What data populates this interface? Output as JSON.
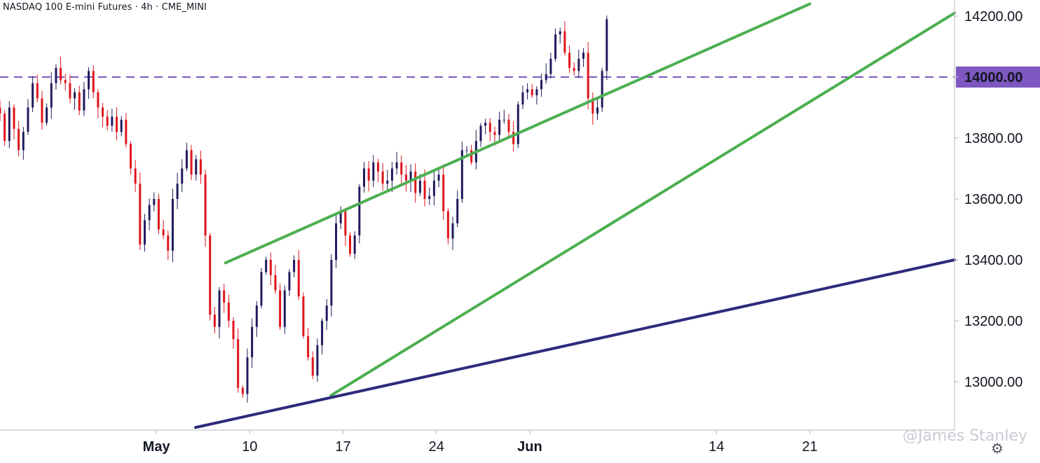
{
  "header": {
    "title": "NASDAQ 100 E-mini Futures · 4h · CME_MINI"
  },
  "watermark": "@James Stanley",
  "settings_icon": "gear-icon",
  "chart_data": {
    "type": "candlestick",
    "title": "NASDAQ 100 E-mini Futures · 4h · CME_MINI",
    "ylim": [
      12850,
      14240
    ],
    "y_ticks": [
      13000,
      13200,
      13400,
      13600,
      13800,
      14000,
      14200
    ],
    "y_tick_labels": [
      "13000.00",
      "13200.00",
      "13400.00",
      "13600.00",
      "13800.00",
      "14000.00",
      "14200.00"
    ],
    "x_ticks": [
      {
        "label": "May",
        "bar": 40
      },
      {
        "label": "10",
        "bar": 60
      },
      {
        "label": "17",
        "bar": 80
      },
      {
        "label": "24",
        "bar": 100
      },
      {
        "label": "Jun",
        "bar": 120
      },
      {
        "label": "14",
        "bar": 160
      },
      {
        "label": "21",
        "bar": 180
      }
    ],
    "x_bars_visible": [
      6.5,
      211
    ],
    "horizontal_level": {
      "value": 14000,
      "label": "14000.00",
      "color": "#7e57c2",
      "style": "dashed"
    },
    "trendlines": [
      {
        "name": "channel-top",
        "color": "#4caf50",
        "points": [
          [
            54.8,
            13390
          ],
          [
            180,
            14240
          ]
        ]
      },
      {
        "name": "channel-bottom",
        "color": "#4caf50",
        "points": [
          [
            77.4,
            12955
          ],
          [
            211,
            14210
          ]
        ]
      },
      {
        "name": "long-support",
        "color": "#2e2a7c",
        "points": [
          [
            48.4,
            12850
          ],
          [
            211,
            13400
          ]
        ]
      }
    ],
    "colors": {
      "up": "#1e1b5e",
      "down": "#e0151b"
    },
    "anchors": [
      [
        6.5,
        13880
      ],
      [
        7.5,
        13790
      ],
      [
        8.5,
        13900
      ],
      [
        9.5,
        13830
      ],
      [
        10.5,
        13760
      ],
      [
        11.5,
        13820
      ],
      [
        12.5,
        13900
      ],
      [
        13.5,
        13980
      ],
      [
        14.5,
        13930
      ],
      [
        15.5,
        13850
      ],
      [
        16.5,
        13900
      ],
      [
        17.5,
        13980
      ],
      [
        18.5,
        14030
      ],
      [
        19.5,
        13990
      ],
      [
        20.5,
        13980
      ],
      [
        21.5,
        13930
      ],
      [
        22.5,
        13950
      ],
      [
        23.5,
        13890
      ],
      [
        24.5,
        13960
      ],
      [
        25.5,
        14020
      ],
      [
        26.5,
        13950
      ],
      [
        27.5,
        13900
      ],
      [
        28.5,
        13870
      ],
      [
        29.5,
        13840
      ],
      [
        30.5,
        13870
      ],
      [
        31.5,
        13820
      ],
      [
        32.5,
        13860
      ],
      [
        33.5,
        13780
      ],
      [
        34.5,
        13700
      ],
      [
        35.5,
        13650
      ],
      [
        36.5,
        13450
      ],
      [
        37.5,
        13530
      ],
      [
        38.5,
        13580
      ],
      [
        39.5,
        13600
      ],
      [
        40.5,
        13500
      ],
      [
        41.5,
        13480
      ],
      [
        42.5,
        13430
      ],
      [
        43.5,
        13600
      ],
      [
        44.5,
        13650
      ],
      [
        45.5,
        13700
      ],
      [
        46.5,
        13760
      ],
      [
        47.5,
        13680
      ],
      [
        48.5,
        13730
      ],
      [
        49.5,
        13680
      ],
      [
        50.5,
        13480
      ],
      [
        51.5,
        13220
      ],
      [
        52.5,
        13180
      ],
      [
        53.5,
        13300
      ],
      [
        54.5,
        13260
      ],
      [
        55.5,
        13200
      ],
      [
        56.5,
        13140
      ],
      [
        57.5,
        12980
      ],
      [
        58.5,
        12960
      ],
      [
        59.5,
        13080
      ],
      [
        60.5,
        13180
      ],
      [
        61.5,
        13250
      ],
      [
        62.5,
        13360
      ],
      [
        63.5,
        13400
      ],
      [
        64.5,
        13350
      ],
      [
        65.5,
        13300
      ],
      [
        66.5,
        13180
      ],
      [
        67.5,
        13300
      ],
      [
        68.5,
        13360
      ],
      [
        69.5,
        13400
      ],
      [
        70.5,
        13280
      ],
      [
        71.5,
        13150
      ],
      [
        72.5,
        13080
      ],
      [
        73.5,
        13020
      ],
      [
        74.5,
        13120
      ],
      [
        75.5,
        13200
      ],
      [
        76.5,
        13250
      ],
      [
        77.5,
        13400
      ],
      [
        78.5,
        13520
      ],
      [
        79.5,
        13560
      ],
      [
        80.5,
        13480
      ],
      [
        81.5,
        13420
      ],
      [
        82.5,
        13480
      ],
      [
        83.5,
        13640
      ],
      [
        84.5,
        13700
      ],
      [
        85.5,
        13660
      ],
      [
        86.5,
        13720
      ],
      [
        87.5,
        13690
      ],
      [
        88.5,
        13650
      ],
      [
        89.5,
        13660
      ],
      [
        90.5,
        13700
      ],
      [
        91.5,
        13720
      ],
      [
        92.5,
        13680
      ],
      [
        93.5,
        13660
      ],
      [
        94.5,
        13690
      ],
      [
        95.5,
        13620
      ],
      [
        96.5,
        13660
      ],
      [
        97.5,
        13600
      ],
      [
        98.5,
        13610
      ],
      [
        99.5,
        13660
      ],
      [
        100.5,
        13680
      ],
      [
        101.5,
        13560
      ],
      [
        102.5,
        13470
      ],
      [
        103.5,
        13520
      ],
      [
        104.5,
        13600
      ],
      [
        105.5,
        13760
      ],
      [
        106.5,
        13760
      ],
      [
        107.5,
        13720
      ],
      [
        108.5,
        13790
      ],
      [
        109.5,
        13840
      ],
      [
        110.5,
        13850
      ],
      [
        111.5,
        13820
      ],
      [
        112.5,
        13810
      ],
      [
        113.5,
        13860
      ],
      [
        114.5,
        13860
      ],
      [
        115.5,
        13820
      ],
      [
        116.5,
        13780
      ],
      [
        117.5,
        13910
      ],
      [
        118.5,
        13950
      ],
      [
        119.5,
        13960
      ],
      [
        120.5,
        13940
      ],
      [
        121.5,
        13960
      ],
      [
        122.5,
        13990
      ],
      [
        123.5,
        14010
      ],
      [
        124.5,
        14060
      ],
      [
        125.5,
        14140
      ],
      [
        126.5,
        14150
      ],
      [
        127.5,
        14080
      ],
      [
        128.5,
        14030
      ],
      [
        129.5,
        14020
      ],
      [
        130.5,
        14060
      ],
      [
        131.5,
        14080
      ],
      [
        132.5,
        13930
      ],
      [
        133.5,
        13880
      ],
      [
        134.5,
        13900
      ],
      [
        135.5,
        14020
      ],
      [
        136.5,
        14190
      ]
    ]
  }
}
